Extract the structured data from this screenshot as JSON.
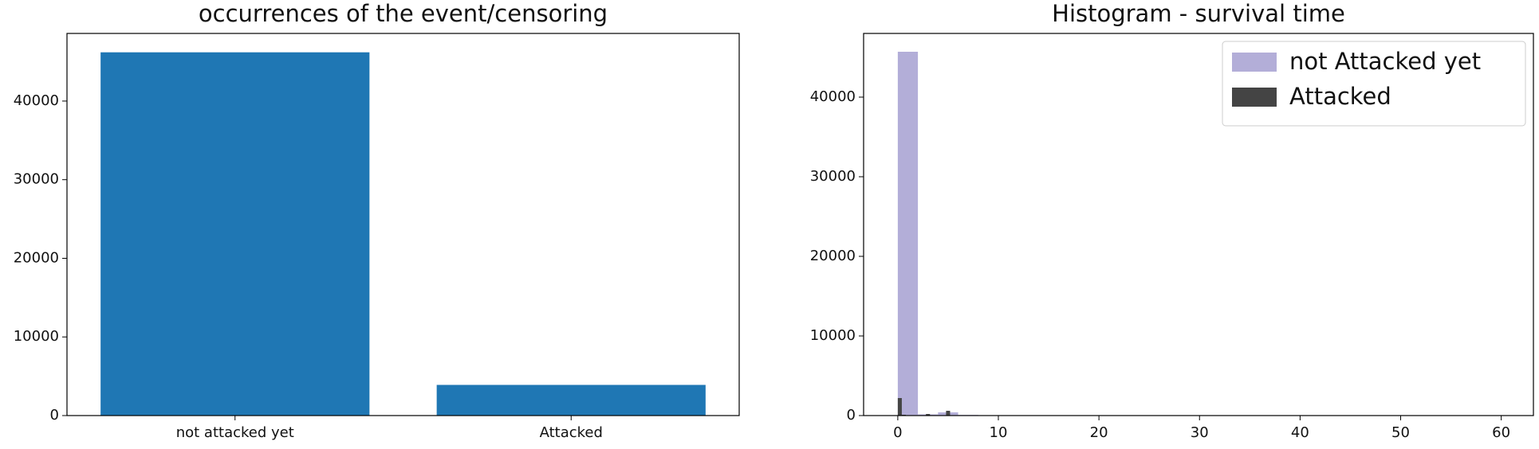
{
  "chart_data": [
    {
      "type": "bar",
      "title": "occurrences of the event/censoring",
      "categories": [
        "not attacked yet",
        "Attacked"
      ],
      "values": [
        46200,
        3900
      ],
      "color": "#1f77b4",
      "ylim": [
        0,
        48600
      ],
      "yticks": [
        0,
        10000,
        20000,
        30000,
        40000
      ]
    },
    {
      "type": "histogram",
      "title": "Histogram - survival time",
      "series": [
        {
          "name": "not Attacked yet",
          "color": "#b3aed8",
          "bins": [
            0,
            2,
            4,
            6,
            8,
            10,
            12,
            14,
            16,
            18,
            20,
            22,
            24,
            26,
            28,
            30,
            32,
            34,
            36,
            38,
            40,
            42,
            44,
            46,
            48,
            50,
            52,
            54,
            56,
            58,
            60
          ],
          "values": [
            45700,
            150,
            400,
            80,
            50,
            40,
            30,
            30,
            20,
            20,
            20,
            20,
            10,
            10,
            10,
            10,
            10,
            10,
            10,
            10,
            10,
            10,
            10,
            10,
            10,
            10,
            10,
            10,
            10,
            10
          ]
        },
        {
          "name": "Attacked",
          "color": "#444444",
          "bins": [
            0,
            0.4,
            0.8,
            1.2,
            1.6,
            2.0,
            2.4,
            2.8,
            3.2,
            3.6,
            4.0,
            4.4,
            4.8,
            5.2,
            5.6,
            6.0
          ],
          "values": [
            2200,
            100,
            0,
            0,
            0,
            0,
            50,
            200,
            0,
            0,
            0,
            0,
            600,
            0,
            0
          ]
        }
      ],
      "xlim": [
        -3.4,
        63.2
      ],
      "xticks": [
        0,
        10,
        20,
        30,
        40,
        50,
        60
      ],
      "ylim": [
        0,
        48000
      ],
      "yticks": [
        0,
        10000,
        20000,
        30000,
        40000
      ],
      "legend": "upper right"
    }
  ]
}
